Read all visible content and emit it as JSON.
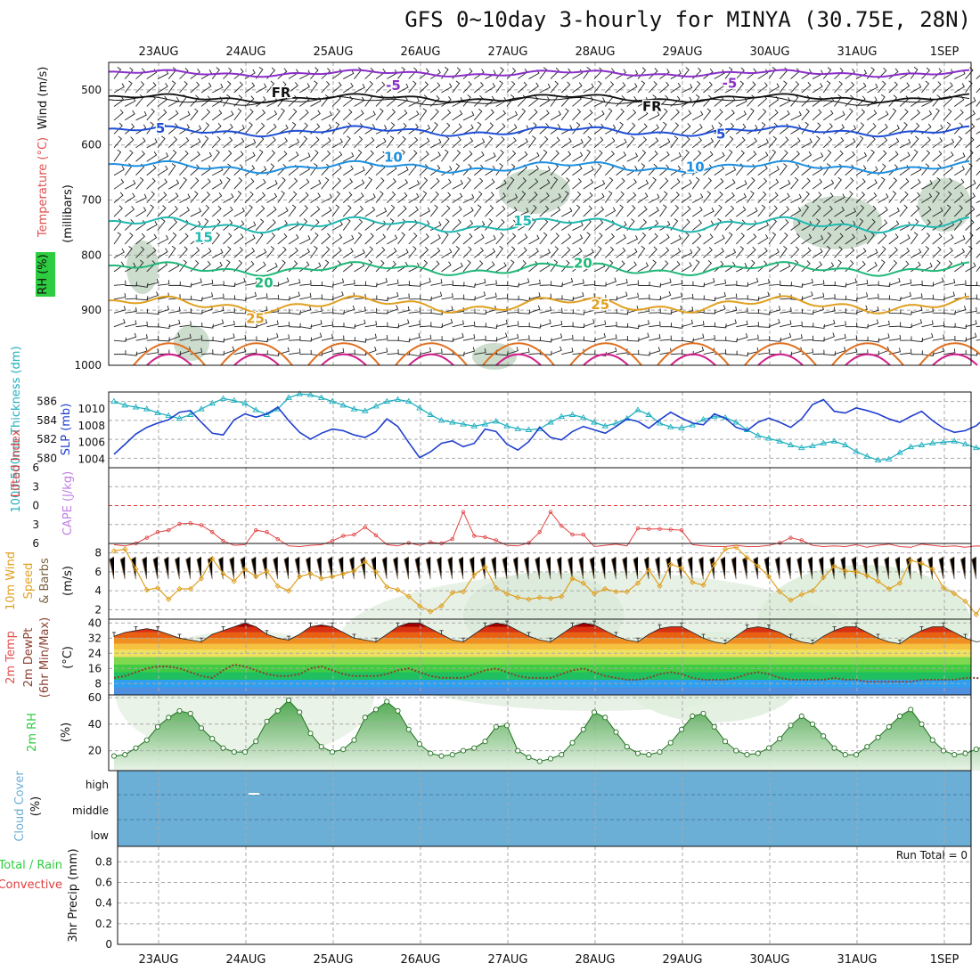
{
  "title": "GFS 0~10day 3-hourly for MINYA (30.75E, 28N)",
  "dates": [
    "23AUG",
    "24AUG",
    "25AUG",
    "26AUG",
    "27AUG",
    "28AUG",
    "29AUG",
    "30AUG",
    "31AUG",
    "1SEP"
  ],
  "panels": {
    "upper": {
      "label_rh": "RH (%)",
      "label_temp": "Temperature (°C)",
      "label_wind": "Wind (m/s)",
      "ylabel": "(millibars)",
      "yticks": [
        "500",
        "600",
        "700",
        "800",
        "900",
        "1000"
      ],
      "contour_labels": [
        {
          "text": "-5",
          "color": "#8b2fc9",
          "t": 0.33,
          "p": 492
        },
        {
          "text": "-5",
          "color": "#8b2fc9",
          "t": 0.72,
          "p": 488
        },
        {
          "text": "FR",
          "color": "#111111",
          "t": 0.2,
          "p": 505
        },
        {
          "text": "FR",
          "color": "#111111",
          "t": 0.63,
          "p": 530
        },
        {
          "text": "5",
          "color": "#1f4fd6",
          "t": 0.06,
          "p": 570
        },
        {
          "text": "5",
          "color": "#1f4fd6",
          "t": 0.71,
          "p": 580
        },
        {
          "text": "10",
          "color": "#1e90e0",
          "t": 0.33,
          "p": 622
        },
        {
          "text": "10",
          "color": "#1e90e0",
          "t": 0.68,
          "p": 640
        },
        {
          "text": "15",
          "color": "#20b8b0",
          "t": 0.11,
          "p": 768
        },
        {
          "text": "15",
          "color": "#20b8b0",
          "t": 0.48,
          "p": 738
        },
        {
          "text": "20",
          "color": "#20b878",
          "t": 0.18,
          "p": 850
        },
        {
          "text": "20",
          "color": "#20b878",
          "t": 0.55,
          "p": 815
        },
        {
          "text": "25",
          "color": "#e0a020",
          "t": 0.17,
          "p": 915
        },
        {
          "text": "25",
          "color": "#e0a020",
          "t": 0.57,
          "p": 890
        }
      ]
    },
    "thickness": {
      "label_thick": "1000-500mb Thickness (dm)",
      "label_slp": "SLP (mb)",
      "yticks_left": [
        "586",
        "584",
        "582",
        "580"
      ],
      "yticks_right": [
        "1010",
        "1008",
        "1006",
        "1004"
      ],
      "thickness_ylim": [
        579,
        587
      ],
      "slp_ylim": [
        1003,
        1012
      ],
      "thickness": [
        586,
        585.6,
        585.4,
        585.2,
        584.8,
        584.5,
        584.2,
        584.6,
        585.2,
        585.8,
        586.3,
        586.1,
        585.8,
        585.1,
        584.6,
        585.2,
        586.4,
        586.8,
        586.7,
        586.4,
        586,
        585.6,
        585.2,
        585,
        585.5,
        586,
        586.2,
        586,
        585.3,
        584.6,
        584,
        583.8,
        583.6,
        583.4,
        583.6,
        583.9,
        583.4,
        583.1,
        583,
        583.1,
        583.8,
        584.4,
        584.6,
        584.3,
        583.8,
        583.4,
        583.7,
        584.2,
        585.1,
        584.6,
        583.7,
        583.3,
        583.2,
        583.5,
        584.1,
        584.4,
        584.3,
        583.8,
        583,
        582.4,
        582.1,
        581.8,
        581.4,
        581.1,
        581.3,
        581.6,
        581.8,
        581.4,
        580.7,
        580.2,
        579.8,
        579.9,
        580.6,
        581.2,
        581.4,
        581.6,
        581.7,
        581.8,
        581.5,
        581.1,
        580.9
      ],
      "slp": [
        1004.6,
        1005.8,
        1007,
        1007.8,
        1008.3,
        1008.7,
        1009.6,
        1009.8,
        1008.4,
        1007.1,
        1006.9,
        1008.7,
        1009.4,
        1009,
        1009.4,
        1010.2,
        1008.6,
        1007.2,
        1006.4,
        1007.1,
        1007.6,
        1007.4,
        1006.9,
        1006.6,
        1007.3,
        1008.8,
        1007.9,
        1006,
        1004.2,
        1004.9,
        1005.9,
        1006.2,
        1005.5,
        1005.9,
        1007.6,
        1007.3,
        1005.8,
        1005.1,
        1006.1,
        1007.8,
        1006.6,
        1006.3,
        1007.3,
        1007.9,
        1007.5,
        1007.1,
        1007.9,
        1008.8,
        1008.5,
        1007.7,
        1008.7,
        1009.6,
        1008.9,
        1008.3,
        1008.1,
        1009.4,
        1008.9,
        1007.8,
        1007.4,
        1008.4,
        1008.9,
        1008.4,
        1007.8,
        1008.8,
        1010.5,
        1011.1,
        1009.7,
        1009.5,
        1010.1,
        1009.8,
        1009.4,
        1008.8,
        1008.4,
        1009.1,
        1009.7,
        1008.6,
        1007.7,
        1007.2,
        1007.4,
        1008,
        1009.1
      ]
    },
    "stability": {
      "label_li": "Lifted Index",
      "label_cape": "CAPE (J/kg)",
      "yticks": [
        "6",
        "3",
        "0",
        "3",
        "6"
      ],
      "ylim": [
        -6,
        6
      ],
      "lifted_index": [
        6.2,
        6.4,
        6,
        5.1,
        4.2,
        3.9,
        2.9,
        2.8,
        3.1,
        4.2,
        5.6,
        6.3,
        6.2,
        3.9,
        4.2,
        5.3,
        6.4,
        6.5,
        6.3,
        6.2,
        5.6,
        4.8,
        4.6,
        3.4,
        4.7,
        6.2,
        6.4,
        5.9,
        6.3,
        5.8,
        6,
        5.3,
        1,
        4.8,
        5,
        5.5,
        6.3,
        6.4,
        5.9,
        4.2,
        1,
        3.2,
        4.6,
        4.6,
        6.5,
        6.3,
        6.1,
        6.4,
        3.6,
        3.7,
        3.7,
        3.8,
        3.9,
        6.2,
        6.4,
        6.5,
        6.5,
        6.3,
        6.5,
        6.5,
        6.3,
        5.9,
        5.1,
        5.5,
        6.3,
        6.5,
        6.4,
        6.5,
        6.2,
        6.6,
        6.3,
        6.1,
        6.5,
        6.6,
        6.1,
        6.3,
        6.5,
        6.4,
        6.6,
        6.4,
        6.5
      ]
    },
    "wind10m": {
      "label_wind": "10m Wind",
      "label_speed": "Speed",
      "label_barbs": "& Barbs",
      "units": "(m/s)",
      "yticks": [
        "8",
        "6",
        "4",
        "2"
      ],
      "ylim": [
        1,
        9
      ],
      "speed": [
        8.2,
        8.4,
        6.3,
        4.1,
        4.3,
        3.1,
        4.2,
        4.2,
        5.3,
        7.4,
        5.8,
        5,
        6.3,
        5.5,
        6.1,
        4.5,
        4,
        5.5,
        5.8,
        5.3,
        5.5,
        5.8,
        6.1,
        7.1,
        6,
        4.4,
        4.1,
        3.4,
        2.4,
        1.8,
        2.4,
        3.8,
        3.9,
        5.7,
        6.5,
        4.3,
        3.7,
        3.3,
        3.1,
        3.3,
        3.2,
        3.4,
        5.3,
        4.8,
        3.7,
        4.2,
        3.9,
        3.9,
        4.8,
        6.2,
        4.5,
        6.8,
        6.4,
        4.9,
        4.6,
        6.8,
        8.4,
        8.6,
        7.5,
        6.6,
        5.5,
        3.9,
        3,
        3.6,
        4,
        5.4,
        6.6,
        6.1,
        6,
        5.6,
        5,
        4.2,
        4.8,
        7.2,
        6.9,
        6.3,
        4.3,
        3.7,
        2.9,
        1.5,
        3.4
      ]
    },
    "temp2m": {
      "label_temp": "2m Temp",
      "label_dewpt": "2m DewPt",
      "label_minmax": "(6hr Min/Max)",
      "units": "(°C)",
      "yticks": [
        "40",
        "32",
        "24",
        "16",
        "8"
      ],
      "ylim": [
        2,
        42
      ],
      "temp": [
        33,
        35,
        36,
        37,
        36,
        34,
        32,
        31,
        30,
        34,
        36,
        38,
        40,
        38,
        34,
        32,
        31,
        34,
        38,
        39,
        38,
        35,
        32,
        31,
        30,
        34,
        38,
        40,
        40,
        37,
        34,
        31,
        30,
        34,
        38,
        40,
        39,
        36,
        33,
        31,
        30,
        34,
        38,
        40,
        39,
        36,
        33,
        31,
        30,
        34,
        37,
        38,
        38,
        35,
        32,
        30,
        29,
        33,
        37,
        38,
        37,
        35,
        32,
        30,
        29,
        33,
        36,
        38,
        38,
        35,
        32,
        30,
        29,
        33,
        36,
        38,
        38,
        35,
        32,
        30,
        31
      ],
      "dewpt": [
        11,
        12,
        14,
        16,
        17,
        17,
        16,
        14,
        12,
        11,
        15,
        18,
        17,
        15,
        13,
        12,
        12,
        13,
        16,
        17,
        15,
        13,
        12,
        12,
        12,
        13,
        15,
        16,
        14,
        12,
        11,
        11,
        11,
        13,
        15,
        16,
        14,
        12,
        11,
        11,
        11,
        13,
        15,
        16,
        14,
        12,
        11,
        10,
        10,
        11,
        13,
        14,
        13,
        11,
        10,
        10,
        10,
        11,
        13,
        14,
        13,
        11,
        10,
        10,
        10,
        10,
        11,
        10,
        10,
        9,
        9,
        9,
        9,
        9,
        10,
        10,
        10,
        10,
        11,
        11,
        10
      ]
    },
    "rh2m": {
      "label": "2m RH",
      "units": "(%)",
      "yticks": [
        "60",
        "40",
        "20"
      ],
      "ylim": [
        5,
        62
      ],
      "rh": [
        16,
        17,
        22,
        28,
        38,
        45,
        50,
        48,
        37,
        29,
        22,
        19,
        19,
        27,
        42,
        50,
        58,
        49,
        33,
        23,
        19,
        21,
        28,
        45,
        51,
        57,
        50,
        36,
        25,
        18,
        16,
        17,
        20,
        22,
        27,
        38,
        39,
        20,
        15,
        12,
        14,
        17,
        26,
        36,
        49,
        45,
        34,
        23,
        18,
        17,
        19,
        26,
        36,
        46,
        48,
        38,
        27,
        20,
        17,
        18,
        22,
        29,
        39,
        46,
        40,
        31,
        22,
        17,
        17,
        23,
        30,
        38,
        46,
        51,
        40,
        28,
        20,
        17,
        18,
        21,
        24
      ]
    },
    "cloud": {
      "label": "Cloud Cover",
      "units": "(%)",
      "levels": [
        "high",
        "middle",
        "low"
      ],
      "color": "#6baed6"
    },
    "precip": {
      "label_total": "Total / Rain",
      "label_conv": "Convective",
      "ylabel": "3hr Precip (mm)",
      "yticks": [
        "0.8",
        "0.6",
        "0.4",
        "0.2",
        "0"
      ],
      "run_total": "Run Total = 0"
    }
  }
}
